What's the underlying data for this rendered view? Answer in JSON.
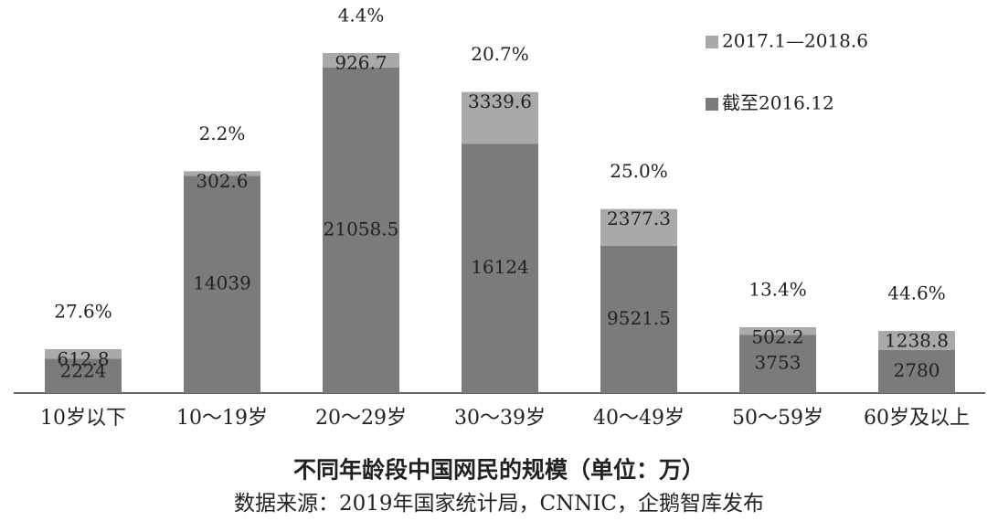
{
  "chart_data": {
    "type": "stacked_bar",
    "title": "不同年龄段中国网民的规模（单位：万）",
    "subtitle": "数据来源：2019年国家统计局，CNNIC，企鹅智库发布",
    "categories": [
      "10岁以下",
      "10～19岁",
      "20～29岁",
      "30～39岁",
      "40～49岁",
      "50～59岁",
      "60岁及以上"
    ],
    "series": [
      {
        "name": "截至2016.12",
        "color": "#7b7b7b",
        "values": [
          2224,
          14039,
          21058.5,
          16124,
          9521.5,
          3753,
          2780
        ]
      },
      {
        "name": "2017.1—2018.6",
        "color": "#a9a9a9",
        "values": [
          612.8,
          302.6,
          926.7,
          3339.6,
          2377.3,
          502.2,
          1238.8
        ]
      }
    ],
    "annotations": [
      "27.6%",
      "2.2%",
      "4.4%",
      "20.7%",
      "25.0%",
      "13.4%",
      "44.6%"
    ],
    "legend": "top-right"
  }
}
